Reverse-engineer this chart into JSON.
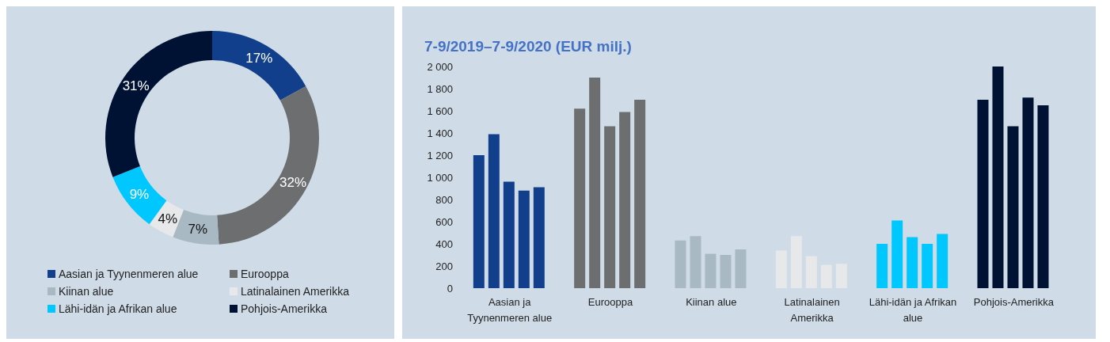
{
  "chart_data": [
    {
      "type": "donut",
      "categories": [
        "Aasian ja Tyynenmeren alue",
        "Eurooppa",
        "Kiinan alue",
        "Latinalainen Amerikka",
        "Lähi-idän ja Afrikan alue",
        "Pohjois-Amerikka"
      ],
      "values": [
        17,
        32,
        7,
        4,
        9,
        31
      ],
      "value_labels": [
        "17%",
        "32%",
        "7%",
        "4%",
        "9%",
        "31%"
      ],
      "colors": [
        "#123f8c",
        "#6d6e70",
        "#a9b9c3",
        "#e6e8ea",
        "#00c8ff",
        "#001233"
      ],
      "legend": "bottom"
    },
    {
      "type": "bar",
      "title": "7-9/2019–7-9/2020 (EUR milj.)",
      "categories": [
        "Aasian ja Tyynenmeren alue",
        "Eurooppa",
        "Kiinan alue",
        "Latinalainen Amerikka",
        "Lähi-idän ja Afrikan alue",
        "Pohjois-Amerikka"
      ],
      "series": [
        {
          "colors": [
            "#123f8c",
            "#6d6e70",
            "#a9b9c3",
            "#e6e8ea",
            "#00c8ff",
            "#001233"
          ],
          "values": [
            1200,
            1620,
            430,
            340,
            400,
            1700
          ]
        },
        {
          "colors": [
            "#123f8c",
            "#6d6e70",
            "#a9b9c3",
            "#e6e8ea",
            "#00c8ff",
            "#001233"
          ],
          "values": [
            1390,
            1900,
            470,
            470,
            610,
            2000
          ]
        },
        {
          "colors": [
            "#123f8c",
            "#6d6e70",
            "#a9b9c3",
            "#e6e8ea",
            "#00c8ff",
            "#001233"
          ],
          "values": [
            960,
            1460,
            310,
            290,
            460,
            1460
          ]
        },
        {
          "colors": [
            "#123f8c",
            "#6d6e70",
            "#a9b9c3",
            "#e6e8ea",
            "#00c8ff",
            "#001233"
          ],
          "values": [
            880,
            1590,
            300,
            210,
            400,
            1720
          ]
        },
        {
          "colors": [
            "#123f8c",
            "#6d6e70",
            "#a9b9c3",
            "#e6e8ea",
            "#00c8ff",
            "#001233"
          ],
          "values": [
            910,
            1700,
            350,
            220,
            490,
            1650
          ]
        }
      ],
      "ylim": [
        0,
        2000
      ],
      "yticks": [
        0,
        200,
        400,
        600,
        800,
        {
          "value": 1000,
          "label": "1 000"
        },
        {
          "value": 1200,
          "label": "1 200"
        },
        {
          "value": 1400,
          "label": "1 400"
        },
        {
          "value": 1600,
          "label": "1 600"
        },
        {
          "value": 1800,
          "label": "1 800"
        },
        {
          "value": 2000,
          "label": "2 000"
        }
      ],
      "grid": false,
      "legend": false
    }
  ]
}
